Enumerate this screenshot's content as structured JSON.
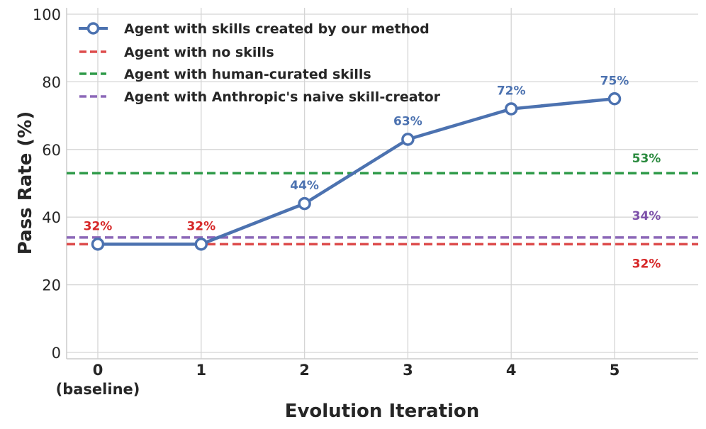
{
  "chart_data": {
    "type": "line",
    "title": "",
    "xlabel": "Evolution Iteration",
    "ylabel": "Pass Rate (%)",
    "x": [
      0,
      1,
      2,
      3,
      4,
      5
    ],
    "x_tick_labels": [
      "0\n(baseline)",
      "1",
      "2",
      "3",
      "4",
      "5"
    ],
    "y_ticks": [
      0,
      20,
      40,
      60,
      80,
      100
    ],
    "xlim": [
      -0.3,
      5.8
    ],
    "ylim": [
      -2,
      102
    ],
    "grid": true,
    "legend_position": "upper left",
    "series": [
      {
        "name": "Agent with skills created by our method",
        "style": "solid-line-open-circle-markers",
        "color": "#4c72b0",
        "values": [
          32,
          32,
          44,
          63,
          72,
          75
        ],
        "data_labels": [
          "32%",
          "32%",
          "44%",
          "63%",
          "72%",
          "75%"
        ],
        "data_label_colors": [
          "#d62728",
          "#d62728",
          "#4c72b0",
          "#4c72b0",
          "#4c72b0",
          "#4c72b0"
        ]
      },
      {
        "name": "Agent with no skills",
        "style": "dashed-hline",
        "color": "#dd4c4c",
        "value": 32,
        "annotation": "32%",
        "annotation_color": "#d62728"
      },
      {
        "name": "Agent with human-curated skills",
        "style": "dashed-hline",
        "color": "#2e9a48",
        "value": 53,
        "annotation": "53%",
        "annotation_color": "#2a8a3e"
      },
      {
        "name": "Agent with Anthropic's naive skill-creator",
        "style": "dashed-hline",
        "color": "#8c68b8",
        "value": 34,
        "annotation": "34%",
        "annotation_color": "#7b4fa8"
      }
    ]
  },
  "axes": {
    "xlabel": "Evolution Iteration",
    "ylabel": "Pass Rate (%)",
    "x_ticks": [
      "0",
      "1",
      "2",
      "3",
      "4",
      "5"
    ],
    "x_tick_sublabel": "(baseline)",
    "y_ticks": [
      "0",
      "20",
      "40",
      "60",
      "80",
      "100"
    ]
  },
  "legend": {
    "items": [
      "Agent with skills created by our method",
      "Agent with no skills",
      "Agent with human-curated skills",
      "Agent with Anthropic's naive skill-creator"
    ]
  }
}
